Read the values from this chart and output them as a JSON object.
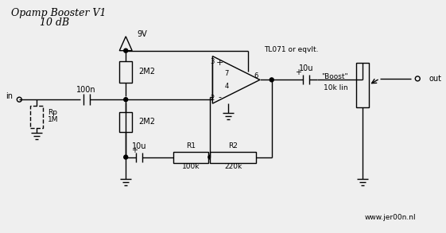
{
  "title1": "Opamp Booster V1",
  "title2": "10 dB",
  "bg_color": "#efefef",
  "line_color": "#000000",
  "text_color": "#000000",
  "website": "www.jer00n.nl",
  "R_top": "2M2",
  "R_bot": "2M2",
  "C_in": "100n",
  "C_fb": "10u",
  "R1_label": "R1",
  "R1_val": "100k",
  "R2_label": "R2",
  "R2_val": "220k",
  "C_out": "10u",
  "pot_label1": "\"Boost\"",
  "pot_label2": "10k lin",
  "opamp_label": "TL071 or eqvlt.",
  "supply": "9V",
  "in_label": "in",
  "out_label": "out",
  "Rp_label1": "Rp",
  "Rp_label2": "1M"
}
